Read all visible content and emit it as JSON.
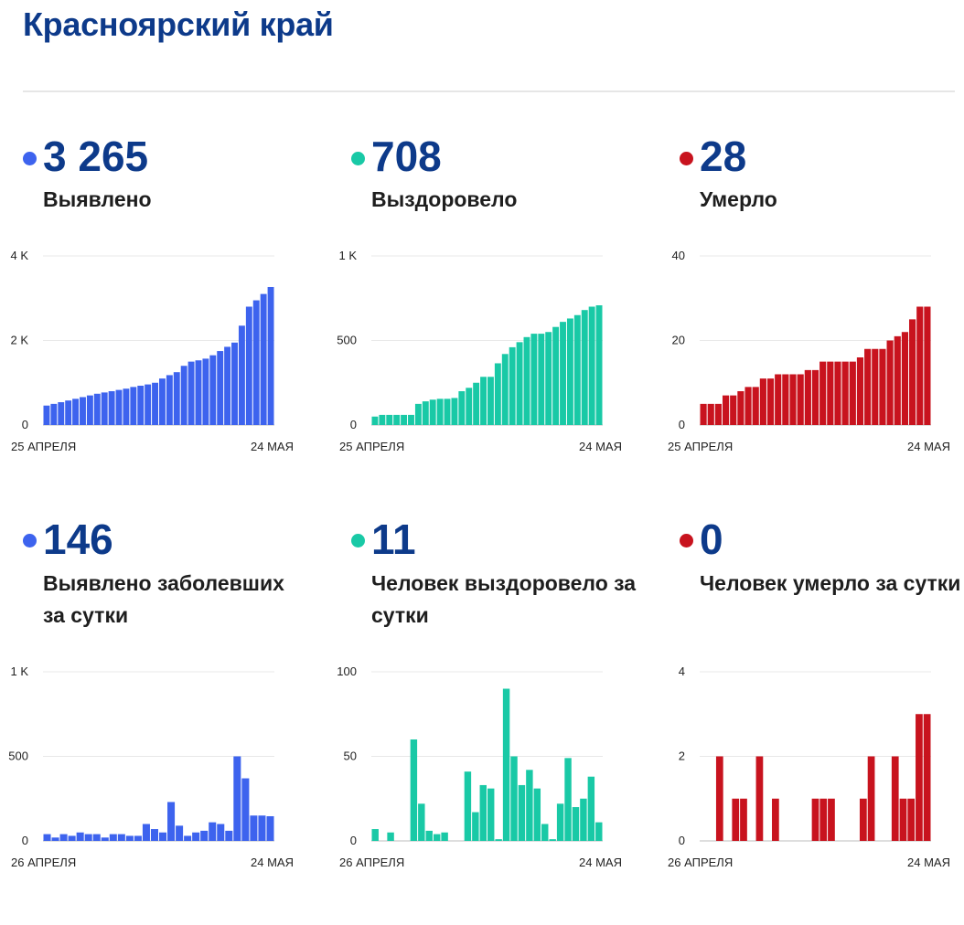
{
  "page": {
    "title": "Красноярский край"
  },
  "colors": {
    "infected": "#3d63ee",
    "recovered": "#19c9a6",
    "deaths": "#c8131e"
  },
  "panels": [
    {
      "id": "cumulative-infected",
      "value": "3 265",
      "label": "Выявлено",
      "color_key": "infected"
    },
    {
      "id": "cumulative-recovered",
      "value": "708",
      "label": "Выздоровело",
      "color_key": "recovered"
    },
    {
      "id": "cumulative-deaths",
      "value": "28",
      "label": "Умерло",
      "color_key": "deaths"
    },
    {
      "id": "daily-infected",
      "value": "146",
      "label": "Выявлено заболевших за сутки",
      "color_key": "infected"
    },
    {
      "id": "daily-recovered",
      "value": "11",
      "label": "Человек выздоровело за сутки",
      "color_key": "recovered"
    },
    {
      "id": "daily-deaths",
      "value": "0",
      "label": "Человек умерло за сутки",
      "color_key": "deaths"
    }
  ],
  "chart_data": [
    {
      "type": "bar",
      "title": "",
      "ylim": [
        0,
        4000
      ],
      "y_ticks": [
        {
          "value": 0,
          "label": "0"
        },
        {
          "value": 2000,
          "label": "2 K"
        },
        {
          "value": 4000,
          "label": "4 K"
        }
      ],
      "x_start_label": "25 АПРЕЛЯ",
      "x_end_label": "24 МАЯ",
      "values": [
        460,
        500,
        540,
        580,
        620,
        660,
        700,
        740,
        770,
        800,
        830,
        860,
        900,
        930,
        960,
        1000,
        1100,
        1180,
        1250,
        1400,
        1500,
        1530,
        1570,
        1650,
        1750,
        1850,
        1950,
        2350,
        2800,
        2950,
        3100,
        3265
      ],
      "color": "#3d63ee"
    },
    {
      "type": "bar",
      "title": "",
      "ylim": [
        0,
        1000
      ],
      "y_ticks": [
        {
          "value": 0,
          "label": "0"
        },
        {
          "value": 500,
          "label": "500"
        },
        {
          "value": 1000,
          "label": "1 K"
        }
      ],
      "x_start_label": "25 АПРЕЛЯ",
      "x_end_label": "24 МАЯ",
      "values": [
        50,
        60,
        60,
        60,
        60,
        60,
        125,
        140,
        150,
        155,
        155,
        160,
        200,
        220,
        250,
        285,
        285,
        365,
        420,
        460,
        490,
        520,
        540,
        540,
        550,
        580,
        610,
        630,
        650,
        680,
        700,
        708
      ],
      "color": "#19c9a6"
    },
    {
      "type": "bar",
      "title": "",
      "ylim": [
        0,
        40
      ],
      "y_ticks": [
        {
          "value": 0,
          "label": "0"
        },
        {
          "value": 20,
          "label": "20"
        },
        {
          "value": 40,
          "label": "40"
        }
      ],
      "x_start_label": "25 АПРЕЛЯ",
      "x_end_label": "24 МАЯ",
      "values": [
        5,
        5,
        5,
        7,
        7,
        8,
        9,
        9,
        11,
        11,
        12,
        12,
        12,
        12,
        13,
        13,
        15,
        15,
        15,
        15,
        15,
        16,
        18,
        18,
        18,
        20,
        21,
        22,
        25,
        28,
        28
      ],
      "color": "#c8131e"
    },
    {
      "type": "bar",
      "title": "",
      "ylim": [
        0,
        1000
      ],
      "y_ticks": [
        {
          "value": 0,
          "label": "0"
        },
        {
          "value": 500,
          "label": "500"
        },
        {
          "value": 1000,
          "label": "1 K"
        }
      ],
      "x_start_label": "26 АПРЕЛЯ",
      "x_end_label": "24 МАЯ",
      "values": [
        40,
        20,
        40,
        30,
        50,
        40,
        40,
        20,
        40,
        40,
        30,
        30,
        100,
        70,
        50,
        230,
        90,
        30,
        50,
        60,
        110,
        100,
        60,
        500,
        370,
        150,
        150,
        146
      ],
      "color": "#3d63ee"
    },
    {
      "type": "bar",
      "title": "",
      "ylim": [
        0,
        100
      ],
      "y_ticks": [
        {
          "value": 0,
          "label": "0"
        },
        {
          "value": 50,
          "label": "50"
        },
        {
          "value": 100,
          "label": "100"
        }
      ],
      "x_start_label": "26 АПРЕЛЯ",
      "x_end_label": "24 МАЯ",
      "values": [
        7,
        0,
        5,
        0,
        0,
        60,
        22,
        6,
        4,
        5,
        0,
        0,
        41,
        17,
        33,
        31,
        1,
        90,
        50,
        33,
        42,
        31,
        10,
        1,
        22,
        49,
        20,
        25,
        38,
        11
      ],
      "color": "#19c9a6"
    },
    {
      "type": "bar",
      "title": "",
      "ylim": [
        0,
        4
      ],
      "y_ticks": [
        {
          "value": 0,
          "label": "0"
        },
        {
          "value": 2,
          "label": "2"
        },
        {
          "value": 4,
          "label": "4"
        }
      ],
      "x_start_label": "26 АПРЕЛЯ",
      "x_end_label": "24 МАЯ",
      "values": [
        0,
        0,
        2,
        0,
        1,
        1,
        0,
        2,
        0,
        1,
        0,
        0,
        0,
        0,
        1,
        1,
        1,
        0,
        0,
        0,
        1,
        2,
        0,
        0,
        2,
        1,
        1,
        3,
        3
      ],
      "color": "#c8131e"
    }
  ]
}
